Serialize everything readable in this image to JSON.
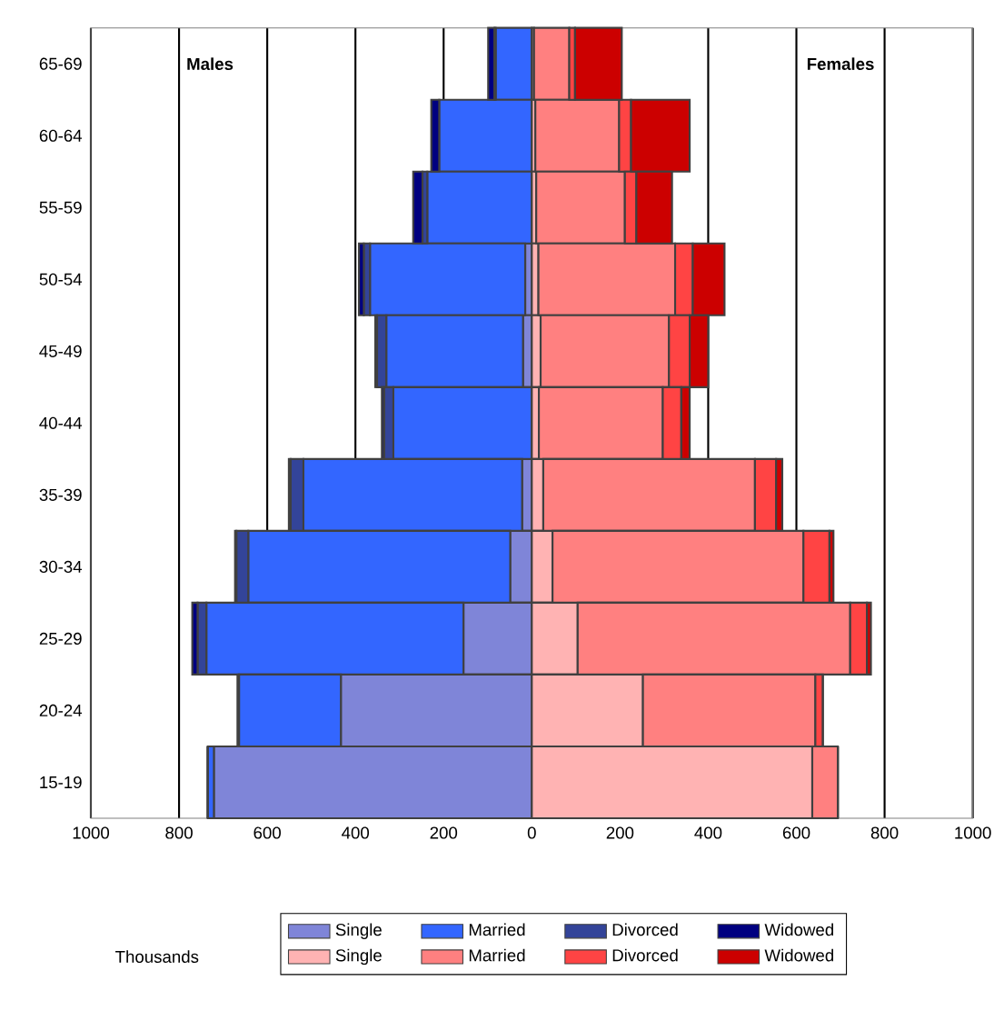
{
  "chart_data": {
    "type": "bar",
    "orientation": "horizontal",
    "stacked": true,
    "categories": [
      "65-69",
      "60-64",
      "55-59",
      "50-54",
      "45-49",
      "40-44",
      "35-39",
      "30-34",
      "25-29",
      "20-24",
      "15-19"
    ],
    "series": [
      {
        "name": "Single",
        "color": "#7f85d8",
        "values": [
          null,
          null,
          null,
          -15,
          -20,
          null,
          -22,
          -49,
          -155,
          -433,
          -721
        ]
      },
      {
        "name": "Married",
        "color": "#3366ff",
        "values": [
          -82,
          -210,
          -237,
          -352,
          -310,
          -314,
          -496,
          -594,
          -583,
          -231,
          -14
        ]
      },
      {
        "name": "Divorced",
        "color": "#334499",
        "values": [
          -3,
          null,
          -11,
          -14,
          -21,
          -21,
          -29,
          -27,
          -20,
          -3,
          0
        ]
      },
      {
        "name": "Widowed",
        "color": "#000080",
        "values": [
          -14,
          -18,
          -21,
          -11,
          -4,
          -5,
          -4,
          -3,
          -12,
          0,
          0
        ]
      },
      {
        "name": "Single",
        "color": "#ffb3b3",
        "values": [
          5,
          8,
          10,
          15,
          20,
          16,
          26,
          47,
          104,
          252,
          636
        ]
      },
      {
        "name": "Married",
        "color": "#ff8080",
        "values": [
          80,
          190,
          201,
          310,
          291,
          281,
          480,
          569,
          618,
          391,
          58
        ]
      },
      {
        "name": "Divorced",
        "color": "#ff4444",
        "values": [
          13,
          27,
          26,
          40,
          47,
          42,
          48,
          59,
          38,
          17,
          0
        ]
      },
      {
        "name": "Widowed",
        "color": "#cc0000",
        "values": [
          106,
          133,
          81,
          72,
          42,
          19,
          14,
          9,
          9,
          0,
          0
        ]
      }
    ],
    "xlim": [
      -1000,
      1000
    ],
    "xticks": [
      {
        "value": -1000,
        "label": "1000"
      },
      {
        "value": -800,
        "label": "800"
      },
      {
        "value": -600,
        "label": "600"
      },
      {
        "value": -400,
        "label": "400"
      },
      {
        "value": -200,
        "label": "200"
      },
      0,
      200,
      400,
      600,
      800,
      1000
    ],
    "grid": "x",
    "legend": "bottom",
    "annotations": [
      "Males",
      "Females",
      "Thousands"
    ]
  }
}
